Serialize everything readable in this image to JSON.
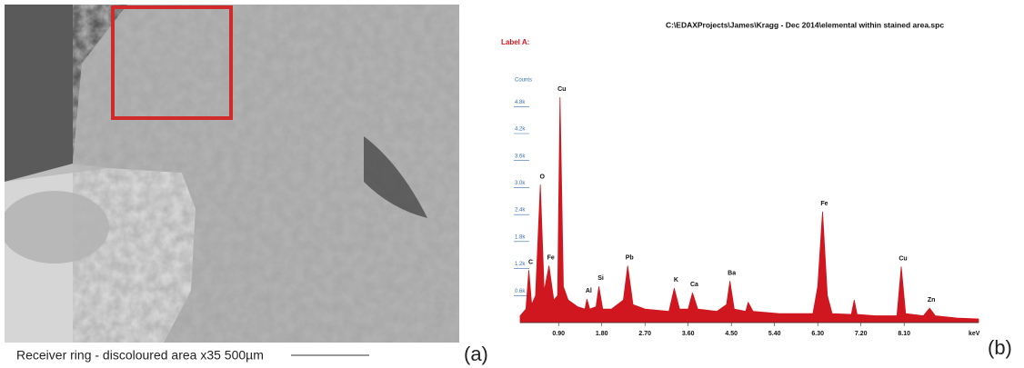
{
  "caption": {
    "text": "Receiver ring - discoloured area  x35  500µm"
  },
  "panel_labels": [
    "(a)",
    "(b)"
  ],
  "chart_data": {
    "type": "area",
    "title": "C:\\EDAXProjects\\James\\Kragg - Dec 2014\\elemental within stained area.spc",
    "label": "Label A:",
    "y_label": "Counts",
    "x_label": "keV",
    "color": "#d0161e",
    "x": [
      0.1,
      0.22,
      0.28,
      0.34,
      0.42,
      0.52,
      0.6,
      0.7,
      0.8,
      0.88,
      0.93,
      1.0,
      1.1,
      1.3,
      1.45,
      1.49,
      1.55,
      1.68,
      1.74,
      1.82,
      2.0,
      2.25,
      2.34,
      2.45,
      2.7,
      3.2,
      3.31,
      3.42,
      3.6,
      3.69,
      3.8,
      4.2,
      4.4,
      4.47,
      4.56,
      4.8,
      4.85,
      4.95,
      5.5,
      6.2,
      6.3,
      6.4,
      6.5,
      6.6,
      7.0,
      7.06,
      7.12,
      7.5,
      7.95,
      8.04,
      8.13,
      8.5,
      8.63,
      8.75,
      9.2,
      9.65
    ],
    "values": [
      150,
      300,
      1160,
      400,
      600,
      3060,
      700,
      1260,
      500,
      600,
      5000,
      800,
      500,
      350,
      300,
      520,
      300,
      350,
      800,
      300,
      300,
      500,
      1260,
      400,
      300,
      250,
      760,
      300,
      300,
      660,
      300,
      250,
      400,
      920,
      300,
      250,
      450,
      250,
      200,
      200,
      800,
      2460,
      600,
      200,
      180,
      500,
      180,
      150,
      150,
      1240,
      200,
      150,
      320,
      150,
      100,
      80
    ],
    "xlim": [
      0.1,
      9.65
    ],
    "ylim": [
      0,
      5250
    ],
    "xticks": [
      {
        "value": 0.9,
        "label": "0.90"
      },
      {
        "value": 1.8,
        "label": "1.80"
      },
      {
        "value": 2.7,
        "label": "2.70"
      },
      {
        "value": 3.6,
        "label": "3.60"
      },
      {
        "value": 4.5,
        "label": "4.50"
      },
      {
        "value": 5.4,
        "label": "5.40"
      },
      {
        "value": 6.3,
        "label": "6.30"
      },
      {
        "value": 7.2,
        "label": "7.20"
      },
      {
        "value": 8.1,
        "label": "8.10"
      }
    ],
    "yticks": [
      {
        "value": 600,
        "label": "0.6k"
      },
      {
        "value": 1200,
        "label": "1.2k"
      },
      {
        "value": 1800,
        "label": "1.8k"
      },
      {
        "value": 2400,
        "label": "2.4k"
      },
      {
        "value": 3000,
        "label": "3.0k"
      },
      {
        "value": 3600,
        "label": "3.6k"
      },
      {
        "value": 4200,
        "label": "4.2k"
      },
      {
        "value": 4800,
        "label": "4.8k"
      }
    ],
    "annotations": [
      {
        "text": "C",
        "x": 0.28,
        "y": 1160
      },
      {
        "text": "O",
        "x": 0.52,
        "y": 3060
      },
      {
        "text": "Fe",
        "x": 0.7,
        "y": 1260
      },
      {
        "text": "Cu",
        "x": 0.93,
        "y": 5000
      },
      {
        "text": "Al",
        "x": 1.49,
        "y": 520
      },
      {
        "text": "Si",
        "x": 1.74,
        "y": 800
      },
      {
        "text": "Pb",
        "x": 2.34,
        "y": 1260
      },
      {
        "text": "K",
        "x": 3.31,
        "y": 760
      },
      {
        "text": "Ca",
        "x": 3.69,
        "y": 660
      },
      {
        "text": "Ba",
        "x": 4.47,
        "y": 920
      },
      {
        "text": "Fe",
        "x": 6.4,
        "y": 2460
      },
      {
        "text": "Cu",
        "x": 8.04,
        "y": 1240
      },
      {
        "text": "Zn",
        "x": 8.63,
        "y": 320
      }
    ]
  }
}
